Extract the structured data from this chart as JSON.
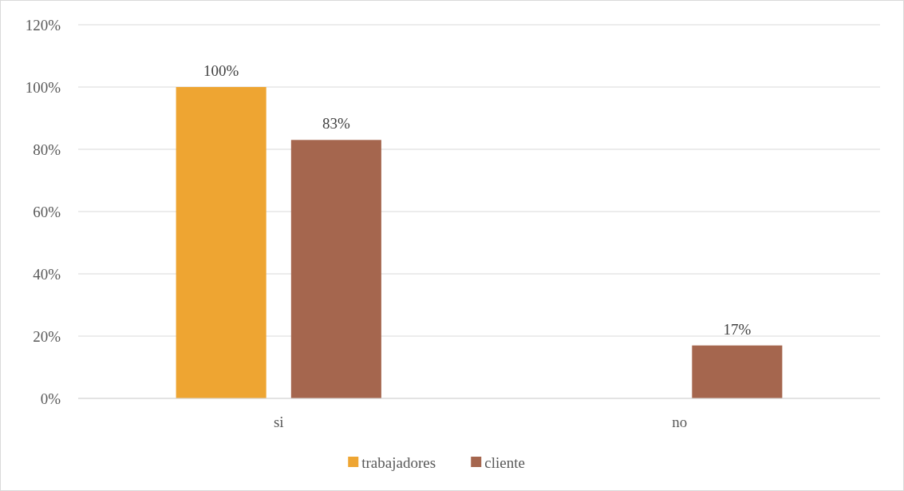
{
  "chart_data": {
    "type": "bar",
    "categories": [
      "si",
      "no"
    ],
    "series": [
      {
        "name": "trabajadores",
        "color": "#eea532",
        "values": [
          100,
          0
        ],
        "value_labels": [
          "100%",
          null
        ]
      },
      {
        "name": "cliente",
        "color": "#a5664e",
        "values": [
          83,
          17
        ],
        "value_labels": [
          "83%",
          "17%"
        ]
      }
    ],
    "ylim": [
      0,
      120
    ],
    "yticks": [
      {
        "value": 0,
        "label": "0%"
      },
      {
        "value": 20,
        "label": "20%"
      },
      {
        "value": 40,
        "label": "40%"
      },
      {
        "value": 60,
        "label": "60%"
      },
      {
        "value": 80,
        "label": "80%"
      },
      {
        "value": 100,
        "label": "100%"
      },
      {
        "value": 120,
        "label": "120%"
      }
    ],
    "grid": "y",
    "legend": "bottom"
  }
}
